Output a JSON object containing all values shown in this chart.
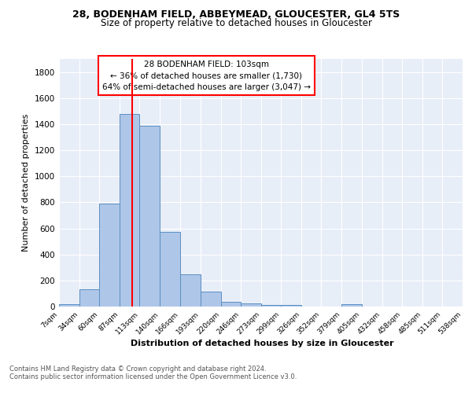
{
  "title1": "28, BODENHAM FIELD, ABBEYMEAD, GLOUCESTER, GL4 5TS",
  "title2": "Size of property relative to detached houses in Gloucester",
  "xlabel": "Distribution of detached houses by size in Gloucester",
  "ylabel": "Number of detached properties",
  "bin_edges": [
    7,
    34,
    60,
    87,
    113,
    140,
    166,
    193,
    220,
    246,
    273,
    299,
    326,
    352,
    379,
    405,
    432,
    458,
    485,
    511,
    538
  ],
  "bin_labels": [
    "7sqm",
    "34sqm",
    "60sqm",
    "87sqm",
    "113sqm",
    "140sqm",
    "166sqm",
    "193sqm",
    "220sqm",
    "246sqm",
    "273sqm",
    "299sqm",
    "326sqm",
    "352sqm",
    "379sqm",
    "405sqm",
    "432sqm",
    "458sqm",
    "485sqm",
    "511sqm",
    "538sqm"
  ],
  "bar_heights": [
    20,
    135,
    790,
    1480,
    1390,
    575,
    245,
    115,
    35,
    25,
    15,
    15,
    0,
    0,
    20,
    0,
    0,
    0,
    0,
    0
  ],
  "bar_color": "#aec6e8",
  "bar_edge_color": "#5a8fc2",
  "red_line_x": 103,
  "annotation_line1": "28 BODENHAM FIELD: 103sqm",
  "annotation_line2": "← 36% of detached houses are smaller (1,730)",
  "annotation_line3": "64% of semi-detached houses are larger (3,047) →",
  "red_line_color": "red",
  "ylim": [
    0,
    1900
  ],
  "yticks": [
    0,
    200,
    400,
    600,
    800,
    1000,
    1200,
    1400,
    1600,
    1800
  ],
  "background_color": "#e8eef8",
  "grid_color": "white",
  "footer_line1": "Contains HM Land Registry data © Crown copyright and database right 2024.",
  "footer_line2": "Contains public sector information licensed under the Open Government Licence v3.0."
}
